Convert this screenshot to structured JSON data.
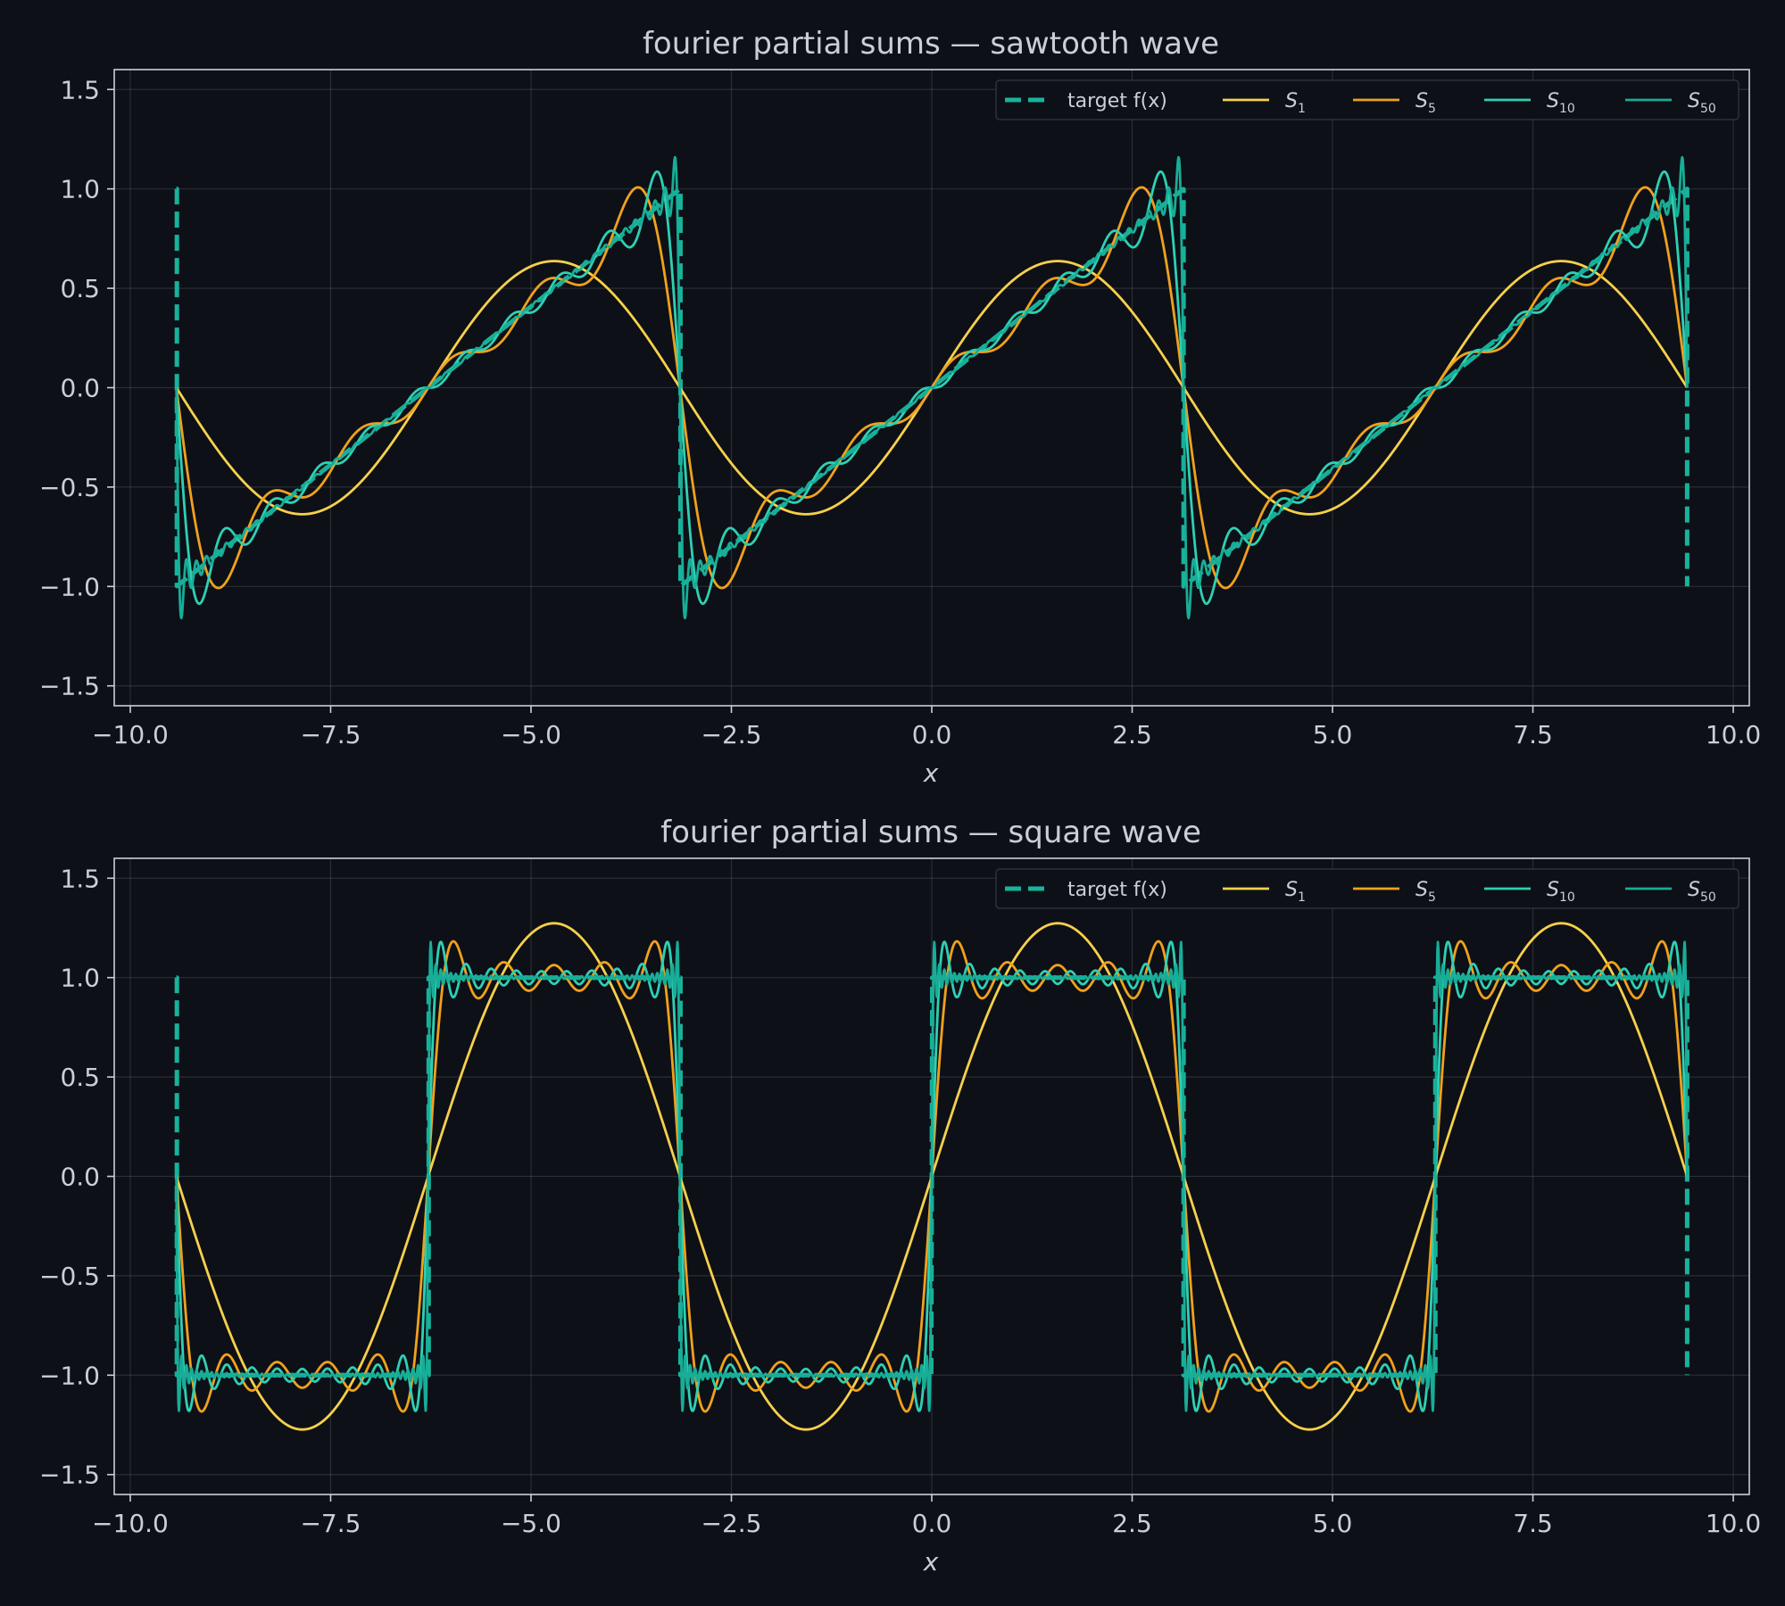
{
  "colors": {
    "background": "#0d1017",
    "text": "#c9cfd8",
    "target": "#17b39b",
    "S1": "#f7d04b",
    "S5": "#f0a11c",
    "S10": "#2ed0b4",
    "S50": "#18ad97"
  },
  "chart_data": [
    {
      "type": "line",
      "title": "fourier partial sums — sawtooth wave",
      "function": "sawtooth",
      "xlabel": "x",
      "ylabel": "",
      "xlim": [
        -10.2,
        10.2
      ],
      "ylim": [
        -1.6,
        1.6
      ],
      "x_range": [
        -9.42478,
        9.42478
      ],
      "xticks": [
        -10,
        -7.5,
        -5,
        -2.5,
        0,
        2.5,
        5,
        7.5,
        10
      ],
      "xtick_labels": [
        "−10.0",
        "−7.5",
        "−5.0",
        "−2.5",
        "0.0",
        "2.5",
        "5.0",
        "7.5",
        "10.0"
      ],
      "yticks": [
        -1.5,
        -1,
        -0.5,
        0,
        0.5,
        1,
        1.5
      ],
      "ytick_labels": [
        "−1.5",
        "−1.0",
        "−0.5",
        "0.0",
        "0.5",
        "1.0",
        "1.5"
      ],
      "grid": true,
      "legend_position": "top-right",
      "series": [
        {
          "name": "target f(x)",
          "label_main": "target f(x)",
          "label_sub": "",
          "terms": 0,
          "style": "dashed",
          "color_key": "target"
        },
        {
          "name": "S1",
          "label_main": "S",
          "label_sub": "1",
          "terms": 1,
          "style": "solid",
          "color_key": "S1"
        },
        {
          "name": "S5",
          "label_main": "S",
          "label_sub": "5",
          "terms": 5,
          "style": "solid",
          "color_key": "S5"
        },
        {
          "name": "S10",
          "label_main": "S",
          "label_sub": "10",
          "terms": 10,
          "style": "solid",
          "color_key": "S10"
        },
        {
          "name": "S50",
          "label_main": "S",
          "label_sub": "50",
          "terms": 50,
          "style": "solid",
          "color_key": "S50"
        }
      ]
    },
    {
      "type": "line",
      "title": "fourier partial sums — square wave",
      "function": "square",
      "xlabel": "x",
      "ylabel": "",
      "xlim": [
        -10.2,
        10.2
      ],
      "ylim": [
        -1.6,
        1.6
      ],
      "x_range": [
        -9.42478,
        9.42478
      ],
      "xticks": [
        -10,
        -7.5,
        -5,
        -2.5,
        0,
        2.5,
        5,
        7.5,
        10
      ],
      "xtick_labels": [
        "−10.0",
        "−7.5",
        "−5.0",
        "−2.5",
        "0.0",
        "2.5",
        "5.0",
        "7.5",
        "10.0"
      ],
      "yticks": [
        -1.5,
        -1,
        -0.5,
        0,
        0.5,
        1,
        1.5
      ],
      "ytick_labels": [
        "−1.5",
        "−1.0",
        "−0.5",
        "0.0",
        "0.5",
        "1.0",
        "1.5"
      ],
      "grid": true,
      "legend_position": "top-right",
      "series": [
        {
          "name": "target f(x)",
          "label_main": "target f(x)",
          "label_sub": "",
          "terms": 0,
          "style": "dashed",
          "color_key": "target"
        },
        {
          "name": "S1",
          "label_main": "S",
          "label_sub": "1",
          "terms": 1,
          "style": "solid",
          "color_key": "S1"
        },
        {
          "name": "S5",
          "label_main": "S",
          "label_sub": "5",
          "terms": 5,
          "style": "solid",
          "color_key": "S5"
        },
        {
          "name": "S10",
          "label_main": "S",
          "label_sub": "10",
          "terms": 10,
          "style": "solid",
          "color_key": "S10"
        },
        {
          "name": "S50",
          "label_main": "S",
          "label_sub": "50",
          "terms": 50,
          "style": "solid",
          "color_key": "S50"
        }
      ]
    }
  ]
}
